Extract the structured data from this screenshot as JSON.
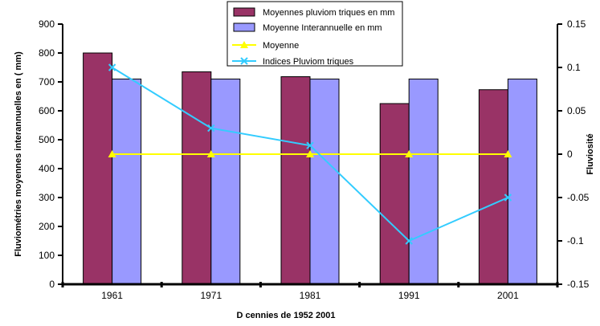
{
  "chart_data": {
    "type": "bar",
    "categories": [
      "1961",
      "1971",
      "1981",
      "1991",
      "2001"
    ],
    "series": [
      {
        "name": "Moyennes pluviom  triques en mm",
        "kind": "bar",
        "axis": "left",
        "values": [
          800,
          735,
          718,
          625,
          673
        ],
        "color": "#993366"
      },
      {
        "name": "Moyenne Interannuelle en mm",
        "kind": "bar",
        "axis": "left",
        "values": [
          710,
          710,
          710,
          710,
          710
        ],
        "color": "#9999ff"
      },
      {
        "name": "Moyenne",
        "kind": "line",
        "axis": "right",
        "values": [
          0,
          0,
          0,
          0,
          0
        ],
        "color": "#ffff00",
        "marker": "triangle"
      },
      {
        "name": "Indices Pluviom  triques",
        "kind": "line",
        "axis": "right",
        "values": [
          0.1,
          0.03,
          0.01,
          -0.1,
          -0.05
        ],
        "color": "#33ccff",
        "marker": "x"
      }
    ],
    "xlabel": "D  cennies de 1952   2001",
    "ylabel": "Fluviométries moyennes interannuelles en ( mm)",
    "y2label": "Fluviosité",
    "ylim": [
      0,
      900
    ],
    "yticks": [
      0,
      100,
      200,
      300,
      400,
      500,
      600,
      700,
      800,
      900
    ],
    "y2lim": [
      -0.15,
      0.15
    ],
    "y2ticks": [
      -0.15,
      -0.1,
      -0.05,
      0,
      0.05,
      0.1,
      0.15
    ],
    "y2ticklabels": [
      "-0.15",
      "-0.1",
      "-0.05",
      "0",
      "0.05",
      "0.1",
      "0.15"
    ],
    "grid": false,
    "legend_position": "top-center"
  }
}
